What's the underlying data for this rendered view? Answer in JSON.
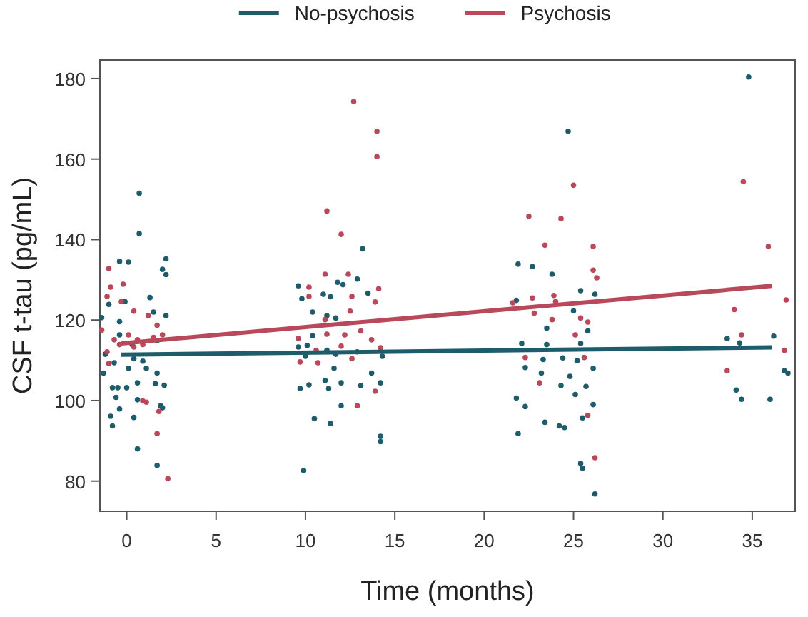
{
  "chart_data": {
    "type": "scatter",
    "xlabel": "Time (months)",
    "ylabel": "CSF t-tau (pg/mL)",
    "xlim": [
      -1.5,
      37.4
    ],
    "ylim": [
      72.5,
      184.6
    ],
    "xticks": [
      0,
      5,
      10,
      15,
      20,
      25,
      30,
      35
    ],
    "yticks": [
      80,
      100,
      120,
      140,
      160,
      180
    ],
    "grid": false,
    "legend": "top",
    "marker": "circle",
    "series": [
      {
        "name": "No-psychosis",
        "color": "#1f5c6b",
        "x": [
          0.7,
          0.7,
          -0.4,
          0.1,
          2.2,
          2.0,
          2.2,
          -1.0,
          -0.1,
          1.3,
          1.5,
          2.2,
          -1.4,
          -0.4,
          -0.4,
          0.3,
          1.7,
          -1.2,
          0.4,
          1.1,
          -0.7,
          1.7,
          -1.3,
          -0.8,
          -0.5,
          0.0,
          0.6,
          1.6,
          2.1,
          -0.6,
          0.6,
          -0.4,
          0.4,
          -0.9,
          -0.8,
          1.9,
          2.0,
          0.6,
          1.7,
          0.9,
          0.1,
          13.2,
          9.6,
          9.8,
          11.0,
          11.4,
          11.8,
          12.1,
          12.9,
          13.5,
          10.4,
          11.2,
          11.7,
          10.4,
          9.6,
          10.1,
          11.2,
          11.7,
          12.9,
          14.3,
          10.0,
          11.6,
          9.7,
          10.2,
          11.3,
          12.0,
          13.1,
          13.7,
          14.2,
          11.1,
          12.0,
          10.5,
          11.4,
          14.2,
          14.2,
          9.9,
          34.8,
          24.7,
          21.9,
          22.7,
          23.8,
          25.4,
          26.2,
          21.8,
          25.0,
          25.8,
          23.5,
          33.6,
          34.3,
          36.2,
          21.8,
          22.3,
          21.9,
          23.4,
          24.2,
          24.5,
          25.5,
          25.4,
          25.5,
          26.2,
          34.1,
          34.4,
          36.0,
          36.8,
          37.0,
          24.3,
          25.1,
          25.7,
          26.1,
          22.1,
          23.2,
          22.3,
          24.8,
          25.2,
          24.4,
          23.5,
          25.4,
          26.1,
          23.3
        ],
        "values": [
          151.5,
          141.5,
          134.6,
          134.4,
          135.2,
          132.6,
          131.3,
          123.9,
          124.6,
          125.6,
          122.0,
          121.1,
          120.6,
          119.6,
          116.3,
          113.9,
          114.9,
          111.5,
          110.4,
          108.0,
          109.4,
          106.8,
          106.8,
          103.2,
          103.2,
          103.2,
          104.4,
          104.2,
          103.8,
          100.8,
          100.2,
          97.9,
          95.8,
          96.1,
          93.7,
          98.7,
          98.2,
          88.0,
          83.9,
          109.8,
          108.0,
          137.7,
          128.5,
          125.3,
          126.4,
          125.8,
          129.4,
          128.8,
          130.2,
          126.7,
          122.0,
          121.1,
          120.5,
          116.1,
          113.3,
          113.7,
          112.5,
          111.5,
          112.1,
          111.0,
          111.0,
          108.0,
          103.0,
          103.9,
          103.0,
          104.4,
          103.7,
          106.8,
          104.4,
          105.0,
          98.7,
          95.5,
          94.3,
          91.1,
          89.8,
          82.6,
          180.4,
          166.9,
          133.9,
          133.3,
          131.4,
          127.3,
          126.4,
          124.9,
          122.3,
          117.3,
          118.0,
          115.4,
          114.3,
          116.0,
          100.6,
          98.5,
          91.8,
          94.6,
          93.7,
          93.3,
          95.7,
          84.4,
          83.2,
          76.8,
          102.6,
          100.3,
          100.3,
          107.4,
          106.8,
          103.7,
          101.5,
          103.5,
          99.0,
          114.2,
          106.8,
          108.2,
          106.0,
          109.9,
          110.6,
          113.9,
          114.2,
          108.0,
          110.2
        ]
      },
      {
        "name": "Psychosis",
        "color": "#b8485a",
        "x": [
          -1.0,
          -0.9,
          -0.2,
          -1.1,
          -0.3,
          0.4,
          1.2,
          1.7,
          2.0,
          0.1,
          -0.7,
          -1.4,
          0.6,
          0.9,
          1.5,
          0.4,
          -1.1,
          -1.0,
          0.9,
          1.1,
          1.8,
          1.7,
          2.3,
          -0.4,
          12.7,
          14.0,
          14.0,
          11.2,
          12.0,
          11.1,
          12.4,
          10.2,
          14.1,
          12.6,
          10.2,
          13.9,
          12.5,
          11.1,
          9.6,
          11.2,
          12.2,
          13.1,
          13.7,
          14.2,
          10.6,
          12.0,
          9.7,
          10.7,
          12.6,
          13.9,
          12.9,
          34.5,
          25.0,
          22.5,
          24.3,
          23.4,
          26.1,
          35.9,
          26.1,
          26.3,
          36.9,
          22.7,
          23.9,
          22.8,
          23.8,
          34.0,
          34.4,
          36.8,
          33.6,
          21.6,
          25.8,
          25.1,
          25.4,
          25.6,
          23.1,
          25.8,
          26.2,
          22.3,
          24.0
        ],
        "values": [
          132.8,
          128.2,
          128.9,
          125.9,
          124.6,
          122.2,
          121.1,
          118.7,
          116.3,
          116.3,
          115.1,
          117.5,
          115.1,
          113.9,
          115.7,
          113.3,
          112.1,
          109.2,
          99.9,
          99.6,
          97.3,
          91.8,
          80.6,
          113.9,
          174.3,
          166.9,
          160.6,
          147.1,
          141.3,
          131.4,
          131.4,
          128.2,
          127.8,
          125.9,
          125.9,
          124.5,
          122.2,
          120.1,
          115.4,
          116.5,
          116.3,
          117.3,
          115.1,
          113.1,
          112.5,
          113.5,
          109.6,
          109.4,
          110.4,
          102.3,
          98.7,
          154.4,
          153.5,
          145.8,
          145.2,
          138.6,
          138.3,
          138.3,
          132.4,
          130.5,
          125.0,
          125.5,
          126.1,
          121.7,
          120.1,
          122.6,
          116.3,
          112.5,
          107.4,
          124.3,
          119.5,
          116.3,
          120.5,
          110.7,
          104.4,
          96.3,
          85.8,
          110.7,
          124.6
        ]
      },
      {
        "color": "#1f5c6b",
        "type": "line",
        "marker": "none",
        "x": [
          -0.3,
          36.1
        ],
        "values": [
          111.4,
          113.2
        ]
      },
      {
        "color": "#b8485a",
        "type": "line",
        "marker": "none",
        "x": [
          -0.3,
          36.1
        ],
        "values": [
          114.2,
          128.5
        ]
      }
    ]
  }
}
